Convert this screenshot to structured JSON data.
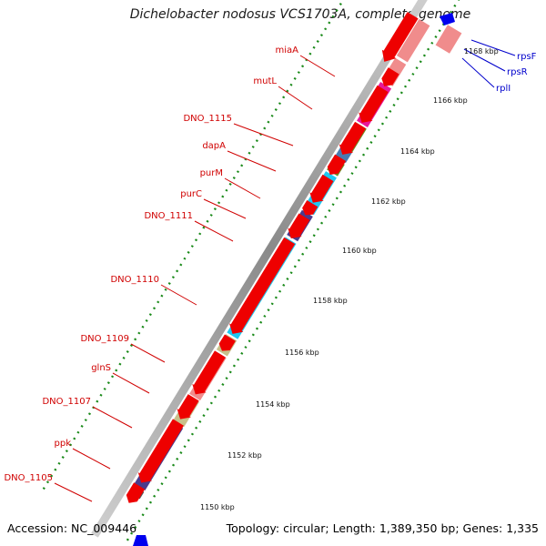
{
  "header": {
    "title": "Dichelobacter nodosus VCS1703A, complete genome"
  },
  "footer": {
    "accession": "Accession: NC_009446",
    "topology": "Topology: circular; Length: 1,389,350 bp; Genes: 1,335"
  },
  "ruler": {
    "ticks": [
      "1150 kbp",
      "1152 kbp",
      "1154 kbp",
      "1156 kbp",
      "1158 kbp",
      "1160 kbp",
      "1162 kbp",
      "1164 kbp",
      "1166 kbp",
      "1168 kbp"
    ]
  },
  "genes_left": [
    "miaA",
    "mutL",
    "DNO_1115",
    "dapA",
    "purM",
    "purC",
    "DNO_1111",
    "DNO_1110",
    "DNO_1109",
    "glnS",
    "DNO_1107",
    "ppk",
    "DNO_1105"
  ],
  "genes_right": [
    "rpsF",
    "rpsR",
    "rplI"
  ],
  "colors": {
    "forward_red": "#ee0000",
    "label_red": "#d00000",
    "label_blue": "#0000cc",
    "tick_green": "#1a8a1a",
    "backbone_gray": "#9a9a9a",
    "pink": "#f08c8c",
    "magenta": "#e8189a",
    "olive": "#6b8e23",
    "steel": "#4a7ab0",
    "cyan": "#1ec8f0",
    "purple": "#4b3c8c",
    "khaki": "#c8c08a"
  }
}
